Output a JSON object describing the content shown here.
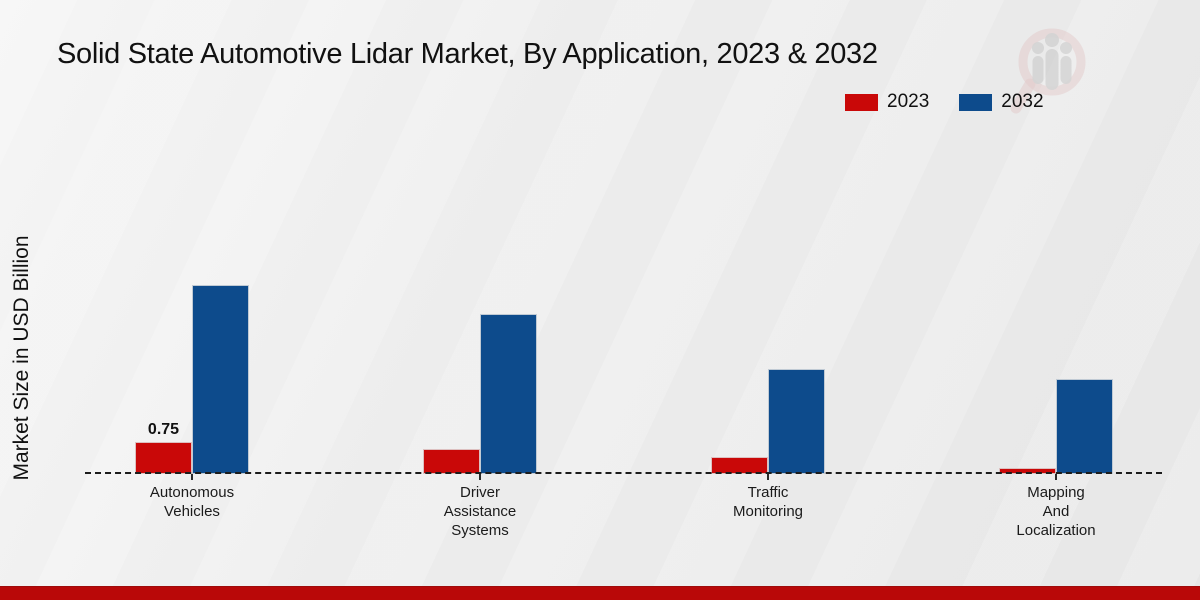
{
  "page": {
    "footer_bar_color": "#b90808",
    "background_color": "#ececec"
  },
  "icons": {
    "watermark": "magnifier-people-watermark",
    "lens_color": "#dcb3b3",
    "figure_color": "#c2c2c2"
  },
  "legend": {
    "items": [
      {
        "label": "2023",
        "color": "#c90808"
      },
      {
        "label": "2032",
        "color": "#0d4b8c"
      }
    ]
  },
  "chart_data": {
    "type": "bar",
    "title": "Solid State Automotive Lidar Market, By Application, 2023 & 2032",
    "xlabel": "",
    "ylabel": "Market Size in USD Billion",
    "categories": [
      "Autonomous Vehicles",
      "Driver Assistance Systems",
      "Traffic Monitoring",
      "Mapping And Localization"
    ],
    "category_label_lines": [
      [
        "Autonomous",
        "Vehicles"
      ],
      [
        "Driver",
        "Assistance",
        "Systems"
      ],
      [
        "Traffic",
        "Monitoring"
      ],
      [
        "Mapping",
        "And",
        "Localization"
      ]
    ],
    "series": [
      {
        "name": "2023",
        "color": "#c90808",
        "values": [
          0.75,
          0.6,
          0.4,
          0.15
        ],
        "value_labels": [
          "0.75",
          "",
          "",
          ""
        ]
      },
      {
        "name": "2032",
        "color": "#0d4b8c",
        "values": [
          4.5,
          3.8,
          2.5,
          2.25
        ],
        "value_labels": [
          "",
          "",
          "",
          ""
        ]
      }
    ],
    "ylim": [
      0,
      5
    ],
    "grid": false,
    "legend_position": "top-right",
    "baseline_style": "dashed"
  }
}
